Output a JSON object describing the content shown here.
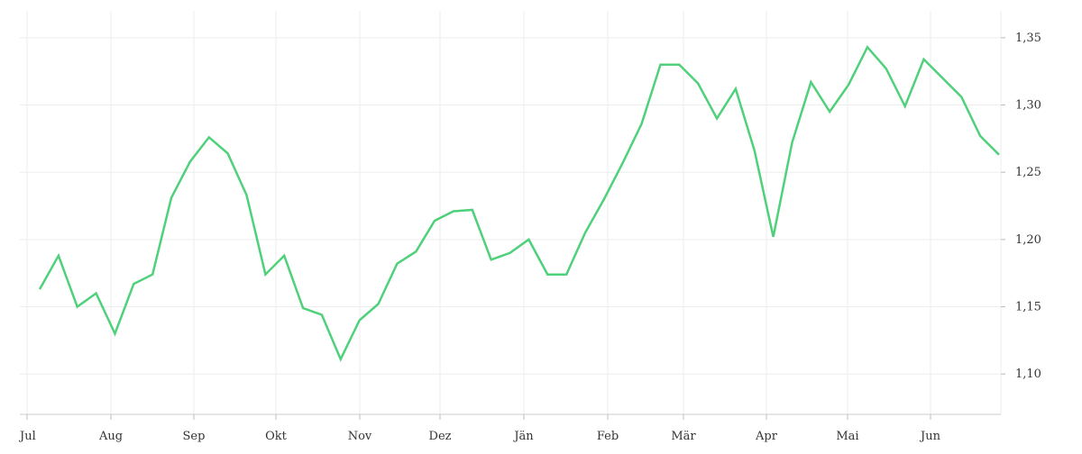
{
  "chart_data": {
    "type": "line",
    "title": "",
    "xlabel": "",
    "ylabel": "",
    "x_tick_labels": [
      "Jul",
      "Aug",
      "Sep",
      "Okt",
      "Nov",
      "Dez",
      "Jän",
      "Feb",
      "Mär",
      "Apr",
      "Mai",
      "Jun"
    ],
    "y_tick_labels": [
      "1,10",
      "1,15",
      "1,20",
      "1,25",
      "1,30",
      "1,35"
    ],
    "y_ticks": [
      1.1,
      1.15,
      1.2,
      1.25,
      1.3,
      1.35
    ],
    "ylim": [
      1.07,
      1.37
    ],
    "y_axis_side": "right",
    "grid": true,
    "legend": "none",
    "line_color": "#4fd07a",
    "grid_color": "#eeeeee",
    "series": [
      {
        "values": [
          1.163,
          1.188,
          1.15,
          1.16,
          1.13,
          1.167,
          1.174,
          1.231,
          1.258,
          1.276,
          1.264,
          1.233,
          1.174,
          1.188,
          1.149,
          1.144,
          1.111,
          1.14,
          1.152,
          1.182,
          1.191,
          1.214,
          1.221,
          1.222,
          1.185,
          1.19,
          1.2,
          1.174,
          1.174,
          1.205,
          1.23,
          1.257,
          1.286,
          1.33,
          1.33,
          1.316,
          1.29,
          1.312,
          1.266,
          1.202,
          1.272,
          1.317,
          1.295,
          1.315,
          1.343,
          1.327,
          1.299,
          1.334,
          1.32,
          1.306,
          1.277,
          1.263
        ]
      }
    ]
  }
}
